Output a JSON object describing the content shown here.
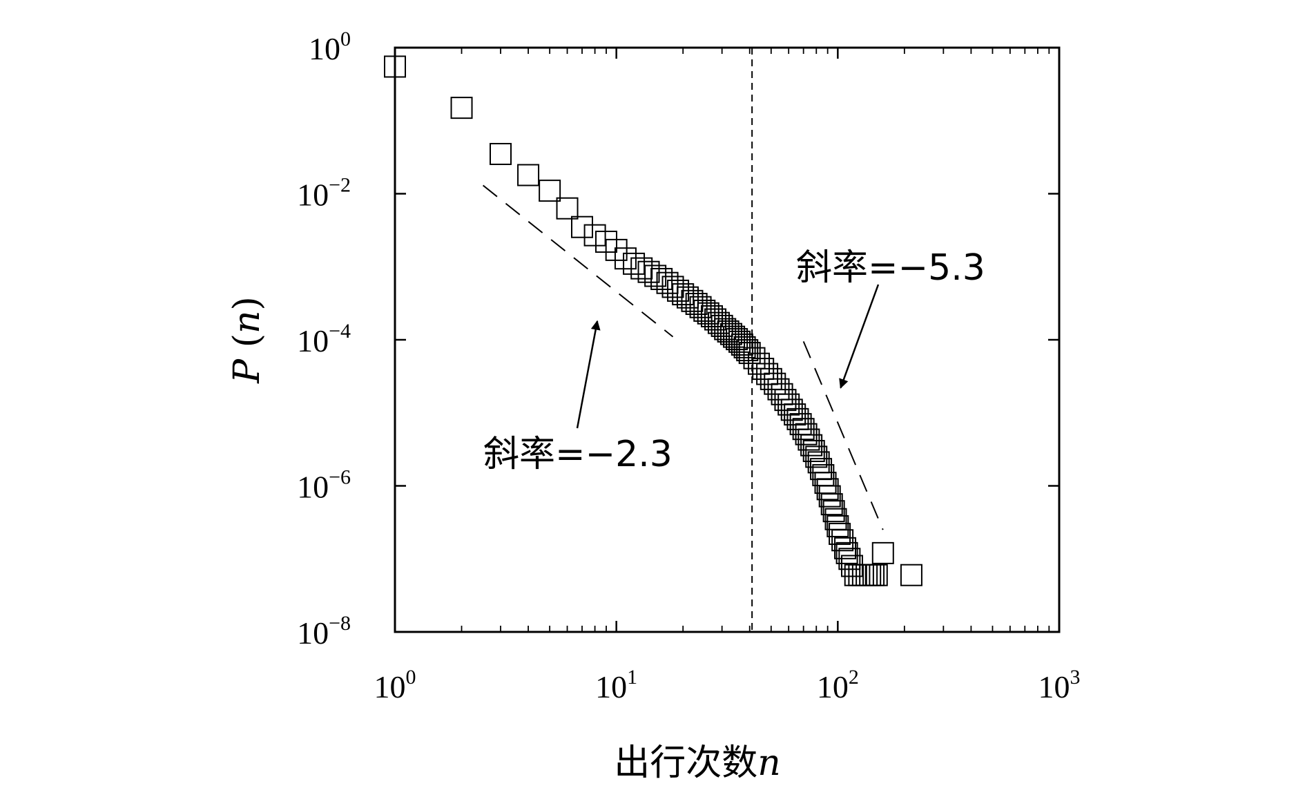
{
  "chart_data": {
    "type": "scatter",
    "xscale": "log",
    "yscale": "log",
    "xlim": [
      1,
      1000
    ],
    "ylim": [
      1e-08,
      1
    ],
    "grid": false,
    "xlabel": {
      "main": "出行次数",
      "var": "n"
    },
    "ylabel": {
      "main": "P",
      "open": " (",
      "var": "n",
      "close": ")"
    },
    "x_ticks": [
      {
        "base": "10",
        "exp": "0",
        "value": 1
      },
      {
        "base": "10",
        "exp": "1",
        "value": 10
      },
      {
        "base": "10",
        "exp": "2",
        "value": 100
      },
      {
        "base": "10",
        "exp": "3",
        "value": 1000
      }
    ],
    "y_ticks": [
      {
        "base": "10",
        "exp": "0",
        "value": 1
      },
      {
        "base": "10",
        "exp": "−2",
        "value": 0.01
      },
      {
        "base": "10",
        "exp": "−4",
        "value": 0.0001
      },
      {
        "base": "10",
        "exp": "−6",
        "value": 1e-06
      },
      {
        "base": "10",
        "exp": "−8",
        "value": 1e-08
      }
    ],
    "marker": "open-square",
    "x": [
      1,
      2,
      3,
      4,
      5,
      6,
      7,
      8,
      9,
      10,
      11,
      12,
      13,
      14,
      15,
      16,
      17,
      18,
      19,
      20,
      21,
      22,
      23,
      24,
      25,
      26,
      27,
      28,
      29,
      30,
      31,
      32,
      33,
      34,
      35,
      36,
      37,
      38,
      39,
      40,
      42,
      44,
      46,
      48,
      50,
      52,
      54,
      56,
      58,
      60,
      62,
      64,
      66,
      68,
      70,
      72,
      74,
      76,
      78,
      80,
      82,
      84,
      86,
      88,
      90,
      92,
      94,
      96,
      98,
      100,
      102,
      105,
      108,
      110,
      113,
      116,
      120,
      125,
      130,
      135,
      140,
      145,
      150,
      160,
      215
    ],
    "y": [
      0.55,
      0.15,
      0.035,
      0.018,
      0.011,
      0.0063,
      0.0035,
      0.0027,
      0.0022,
      0.0017,
      0.0013,
      0.0011,
      0.00095,
      0.00085,
      0.00075,
      0.00068,
      0.0006,
      0.00053,
      0.00047,
      0.00042,
      0.00038,
      0.00034,
      0.00031,
      0.00028,
      0.00025,
      0.00023,
      0.00021,
      0.00019,
      0.00017,
      0.000155,
      0.00014,
      0.00013,
      0.00012,
      0.00011,
      0.000102,
      9.4e-05,
      8.6e-05,
      7.9e-05,
      7.2e-05,
      6.6e-05,
      5.6e-05,
      4.7e-05,
      4e-05,
      3.4e-05,
      2.9e-05,
      2.5e-05,
      2.1e-05,
      1.8e-05,
      1.5e-05,
      1.3e-05,
      1.1e-05,
      9.5e-06,
      8.2e-06,
      7e-06,
      6e-06,
      5.1e-06,
      4.3e-06,
      3.6e-06,
      3e-06,
      2.5e-06,
      2.1e-06,
      1.7e-06,
      1.4e-06,
      1.1e-06,
      9e-07,
      7.2e-07,
      5.6e-07,
      4.5e-07,
      3.5e-07,
      2.8e-07,
      2.2e-07,
      1.8e-07,
      1.4e-07,
      1.2e-07,
      1e-07,
      8e-08,
      6e-08,
      6e-08,
      6e-08,
      6e-08,
      6e-08,
      6e-08,
      6e-08,
      1.2e-07,
      6e-08
    ],
    "reference_lines": [
      {
        "x1": 2.5,
        "y1": 0.013,
        "x2": 18,
        "y2": 0.00011
      },
      {
        "x1": 70,
        "y1": 9.5e-05,
        "x2": 160,
        "y2": 2.5e-07
      }
    ],
    "vertical_line_x": 41,
    "annotations": [
      {
        "label": "斜率=−2.3",
        "point_x": 8.2,
        "point_y": 0.00018
      },
      {
        "label": "斜率=−5.3",
        "point_x": 103,
        "point_y": 2.2e-05
      }
    ]
  }
}
